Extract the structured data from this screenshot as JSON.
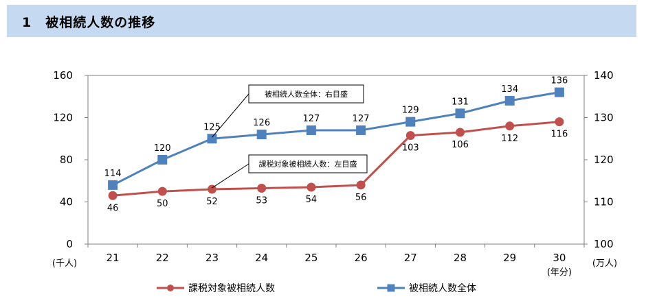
{
  "section_title": "1　被相続人数の推移",
  "colors": {
    "header_bg": "#c5d9f1",
    "series_red": "#c0504d",
    "series_blue": "#4f81bd"
  },
  "chart_data": {
    "type": "line",
    "x": [
      "21",
      "22",
      "23",
      "24",
      "25",
      "26",
      "27",
      "28",
      "29",
      "30"
    ],
    "x_unit": "(年分)",
    "y_left": {
      "unit": "(千人)",
      "ylim": [
        0,
        160
      ],
      "ticks": [
        "0",
        "40",
        "80",
        "120",
        "160"
      ]
    },
    "y_right": {
      "unit": "(万人)",
      "ylim": [
        100,
        140
      ],
      "ticks": [
        "100",
        "110",
        "120",
        "130",
        "140"
      ]
    },
    "grid": false,
    "legend_position": "bottom",
    "series": [
      {
        "name": "課税対象被相続人数",
        "axis": "left",
        "marker": "circle",
        "values": [
          46,
          50,
          52,
          53,
          54,
          56,
          103,
          106,
          112,
          116
        ],
        "labels": [
          "46",
          "50",
          "52",
          "53",
          "54",
          "56",
          "103",
          "106",
          "112",
          "116"
        ]
      },
      {
        "name": "被相続人数全体",
        "axis": "right",
        "marker": "square",
        "values": [
          114,
          120,
          125,
          126,
          127,
          127,
          129,
          131,
          134,
          136
        ],
        "labels": [
          "114",
          "120",
          "125",
          "126",
          "127",
          "127",
          "129",
          "131",
          "134",
          "136"
        ]
      }
    ],
    "annotations": [
      "被相続人数全体：右目盛",
      "課税対象被相続人数：左目盛"
    ]
  }
}
